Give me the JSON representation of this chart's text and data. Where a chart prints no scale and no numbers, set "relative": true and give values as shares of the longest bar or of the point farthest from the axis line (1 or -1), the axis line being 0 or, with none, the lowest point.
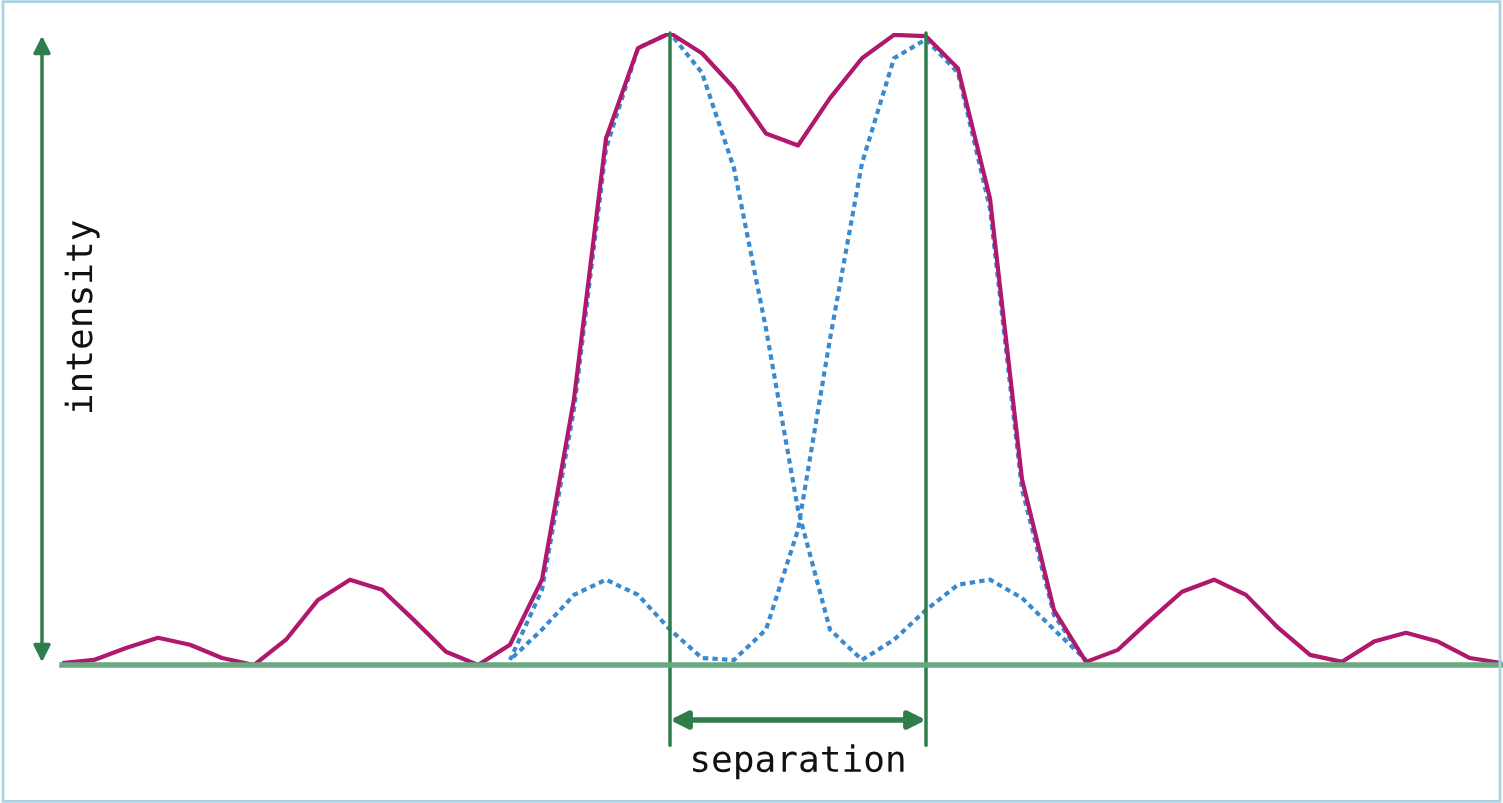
{
  "chart_data": {
    "type": "line",
    "relative": true,
    "ylabel": "intensity",
    "annotations": [
      "separation"
    ],
    "grid": false,
    "legend": false,
    "categories": [
      null,
      null,
      null,
      null,
      null,
      null,
      null,
      null,
      null,
      null,
      null,
      null,
      null,
      null,
      null,
      null,
      null,
      null,
      null,
      null,
      null,
      null,
      null,
      null,
      null,
      null,
      null,
      null,
      null,
      null,
      null,
      null,
      null,
      null,
      null,
      null,
      null,
      null,
      null,
      null,
      null,
      null,
      null,
      null,
      null,
      null
    ],
    "series": [
      {
        "color": "#3a8ad0",
        "line_style": "dotted",
        "values": [
          null,
          null,
          null,
          null,
          null,
          null,
          null,
          null,
          null,
          null,
          null,
          null,
          null,
          null,
          0.008,
          0.119,
          0.405,
          0.817,
          0.976,
          1.0,
          0.937,
          0.786,
          0.532,
          0.246,
          0.056,
          0.008,
          0.04,
          0.087,
          0.127,
          0.135,
          0.106,
          0.056,
          0.008,
          null,
          null,
          null,
          null,
          null,
          null,
          null,
          null,
          null,
          null,
          null,
          null,
          null
        ]
      },
      {
        "color": "#3a8ad0",
        "line_style": "dotted",
        "values": [
          null,
          null,
          null,
          null,
          null,
          null,
          null,
          null,
          null,
          null,
          null,
          null,
          null,
          null,
          0.008,
          0.056,
          0.111,
          0.135,
          0.111,
          0.056,
          0.011,
          0.008,
          0.056,
          0.214,
          0.516,
          0.794,
          0.96,
          0.99,
          0.937,
          0.722,
          0.278,
          0.079,
          0.005,
          null,
          null,
          null,
          null,
          null,
          null,
          null,
          null,
          null,
          null,
          null,
          null,
          null
        ]
      },
      {
        "color": "#b0186e",
        "line_style": "solid",
        "values": [
          0.003,
          0.008,
          0.027,
          0.043,
          0.032,
          0.011,
          0,
          0.04,
          0.103,
          0.135,
          0.119,
          0.071,
          0.021,
          0,
          0.032,
          0.135,
          0.421,
          0.833,
          0.976,
          1.0,
          0.968,
          0.913,
          0.841,
          0.822,
          0.897,
          0.96,
          0.997,
          0.995,
          0.944,
          0.738,
          0.294,
          0.087,
          0.005,
          0.024,
          0.071,
          0.116,
          0.135,
          0.111,
          0.059,
          0.016,
          0.005,
          0.037,
          0.051,
          0.037,
          0.011,
          0.003
        ]
      }
    ]
  }
}
